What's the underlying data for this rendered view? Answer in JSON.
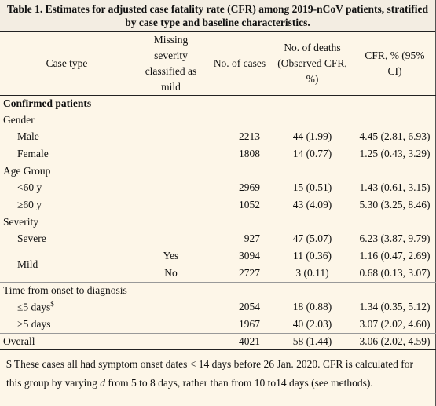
{
  "header": {
    "title": "Table 1. Estimates for adjusted case fatality rate (CFR) among 2019-nCoV patients, stratified by case type and baseline characteristics."
  },
  "table": {
    "columns": [
      "Case type",
      "Missing severity classified as mild",
      "No. of cases",
      "No. of deaths (Observed CFR, %)",
      "CFR, % (95% CI)"
    ],
    "section": "Confirmed patients",
    "groups": [
      {
        "label": "Gender",
        "rows": [
          {
            "type": "Male",
            "cases": 2213,
            "deaths": "44 (1.99)",
            "cfr": "4.45 (2.81, 6.93)"
          },
          {
            "type": "Female",
            "cases": 1808,
            "deaths": "14 (0.77)",
            "cfr": "1.25 (0.43, 3.29)"
          }
        ]
      },
      {
        "label": "Age Group",
        "rows": [
          {
            "type": "<60 y",
            "cases": 2969,
            "deaths": "15 (0.51)",
            "cfr": "1.43 (0.61, 3.15)"
          },
          {
            "type": "≥60 y",
            "cases": 1052,
            "deaths": "43 (4.09)",
            "cfr": "5.30 (3.25, 8.46)"
          }
        ]
      },
      {
        "label": "Severity",
        "rows": [
          {
            "type": "Severe",
            "cases": 927,
            "deaths": "47 (5.07)",
            "cfr": "6.23 (3.87, 9.79)"
          },
          {
            "type": "Mild",
            "subrows": [
              {
                "missing_mild": "Yes",
                "cases": 3094,
                "deaths": "11 (0.36)",
                "cfr": "1.16 (0.47, 2.69)"
              },
              {
                "missing_mild": "No",
                "cases": 2727,
                "deaths": "3 (0.11)",
                "cfr": "0.68 (0.13, 3.07)"
              }
            ]
          }
        ]
      },
      {
        "label": "Time from onset to diagnosis",
        "rows": [
          {
            "type": "≤5 days",
            "note_mark": "$",
            "cases": 2054,
            "deaths": "18 (0.88)",
            "cfr": "1.34 (0.35, 5.12)"
          },
          {
            "type": ">5 days",
            "cases": 1967,
            "deaths": "40 (2.03)",
            "cfr": "3.07 (2.02, 4.60)"
          }
        ]
      }
    ],
    "overall": {
      "type": "Overall",
      "cases": 4021,
      "deaths": "58 (1.44)",
      "cfr": "3.06 (2.02, 4.59)"
    }
  },
  "footnote": [
    "$ These cases all had symptom onset dates < 14 days before 26 Jan. 2020. CFR is calculated for this group by varying ",
    "d",
    " from 5 to 8 days, rather than from 10 to14 days (see methods)."
  ]
}
